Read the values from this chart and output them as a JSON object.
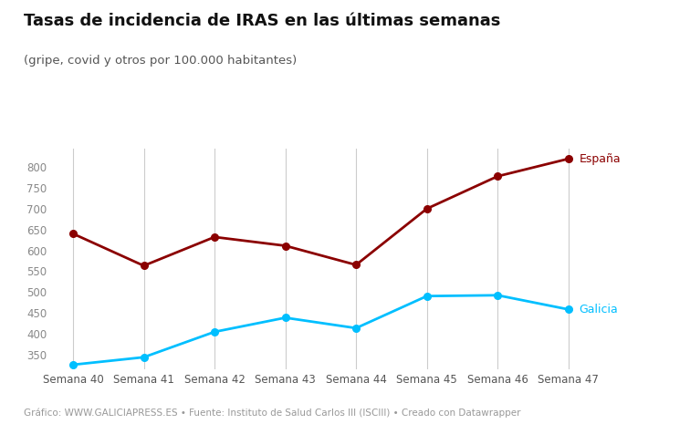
{
  "title": "Tasas de incidencia de IRAS en las últimas semanas",
  "subtitle": "(gripe, covid y otros por 100.000 habitantes)",
  "categories": [
    "Semana 40",
    "Semana 41",
    "Semana 42",
    "Semana 43",
    "Semana 44",
    "Semana 45",
    "Semana 46",
    "Semana 47"
  ],
  "espana": [
    640,
    563,
    632,
    611,
    565,
    700,
    778,
    820
  ],
  "galicia": [
    325,
    343,
    404,
    438,
    413,
    490,
    492,
    458
  ],
  "espana_color": "#8B0000",
  "galicia_color": "#00BFFF",
  "espana_label": "España",
  "galicia_label": "Galicia",
  "ylim": [
    315,
    845
  ],
  "yticks": [
    350,
    400,
    450,
    500,
    550,
    600,
    650,
    700,
    750,
    800
  ],
  "grid_color": "#cccccc",
  "bg_color": "#ffffff",
  "footer": "Gráfico: WWW.GALICIAPRESS.ES • Fuente: Instituto de Salud Carlos III (ISCIII) • Creado con Datawrapper",
  "title_fontsize": 13,
  "subtitle_fontsize": 9.5,
  "label_fontsize": 9,
  "tick_fontsize": 8.5,
  "footer_fontsize": 7.5
}
